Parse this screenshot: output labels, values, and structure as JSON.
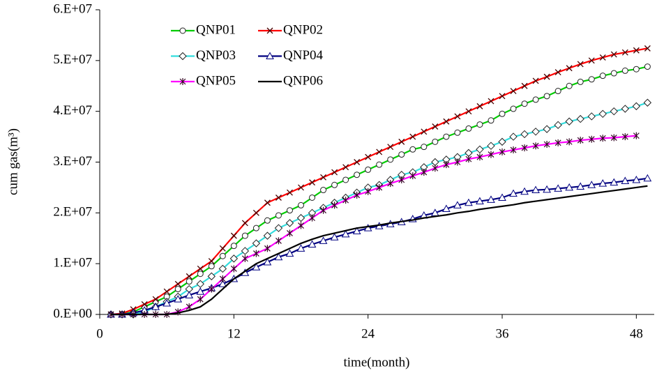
{
  "chart_data": {
    "type": "line",
    "xlabel": "time(month)",
    "ylabel": "cum gas(m³)",
    "xlim": [
      0,
      49.6
    ],
    "xticks": [
      0,
      12,
      24,
      36,
      48
    ],
    "ylim": [
      0,
      60000000
    ],
    "yticks": [
      {
        "value": 0,
        "label": "0.E+00"
      },
      {
        "value": 10000000,
        "label": "1.E+07"
      },
      {
        "value": 20000000,
        "label": "2.E+07"
      },
      {
        "value": 30000000,
        "label": "3.E+07"
      },
      {
        "value": 40000000,
        "label": "4.E+07"
      },
      {
        "value": 50000000,
        "label": "5.E+07"
      },
      {
        "value": 60000000,
        "label": "6.E+07"
      }
    ],
    "grid": false,
    "legend": "upper left",
    "x": [
      1,
      2,
      3,
      4,
      5,
      6,
      7,
      8,
      9,
      10,
      11,
      12,
      13,
      14,
      15,
      16,
      17,
      18,
      19,
      20,
      21,
      22,
      23,
      24,
      25,
      26,
      27,
      28,
      29,
      30,
      31,
      32,
      33,
      34,
      35,
      36,
      37,
      38,
      39,
      40,
      41,
      42,
      43,
      44,
      45,
      46,
      47,
      48,
      49
    ],
    "series": [
      {
        "name": "QNP01",
        "color": "#00cc00",
        "marker": "circle",
        "values": [
          0,
          0,
          500000.0,
          1500000.0,
          2500000.0,
          3500000.0,
          5000000.0,
          6500000.0,
          8000000.0,
          9500000.0,
          11500000.0,
          13500000.0,
          15500000.0,
          17000000.0,
          18500000.0,
          19500000.0,
          20500000.0,
          21500000.0,
          23000000.0,
          24500000.0,
          25500000.0,
          26500000.0,
          27500000.0,
          28500000.0,
          29500000.0,
          30500000.0,
          31500000.0,
          32500000.0,
          33000000.0,
          34000000.0,
          35000000.0,
          35800000.0,
          36600000.0,
          37400000.0,
          38200000.0,
          39500000.0,
          40500000.0,
          41500000.0,
          42300000.0,
          43000000.0,
          44000000.0,
          45000000.0,
          45800000.0,
          46300000.0,
          47000000.0,
          47500000.0,
          48000000.0,
          48300000.0,
          48800000.0
        ]
      },
      {
        "name": "QNP02",
        "color": "#ff0000",
        "marker": "x",
        "values": [
          0,
          200000.0,
          1000000.0,
          2000000.0,
          3000000.0,
          4500000.0,
          6000000.0,
          7500000.0,
          9000000.0,
          10500000.0,
          13000000.0,
          15500000.0,
          18000000.0,
          20000000.0,
          22000000.0,
          23000000.0,
          24000000.0,
          25000000.0,
          26000000.0,
          27000000.0,
          28000000.0,
          29000000.0,
          30000000.0,
          31000000.0,
          32000000.0,
          33000000.0,
          34000000.0,
          35000000.0,
          36000000.0,
          37000000.0,
          38000000.0,
          39000000.0,
          40000000.0,
          41000000.0,
          42000000.0,
          43000000.0,
          44000000.0,
          45000000.0,
          46000000.0,
          46800000.0,
          47700000.0,
          48500000.0,
          49300000.0,
          50000000.0,
          50600000.0,
          51200000.0,
          51600000.0,
          52000000.0,
          52400000.0
        ]
      },
      {
        "name": "QNP03",
        "color": "#33dddd",
        "marker": "diamond",
        "values": [
          0,
          0,
          0,
          500000.0,
          1500000.0,
          2500000.0,
          3500000.0,
          5000000.0,
          6000000.0,
          7500000.0,
          9000000.0,
          11000000.0,
          12500000.0,
          14000000.0,
          15500000.0,
          17000000.0,
          18000000.0,
          19000000.0,
          20000000.0,
          21000000.0,
          22000000.0,
          23000000.0,
          24000000.0,
          25000000.0,
          25500000.0,
          26500000.0,
          27500000.0,
          28000000.0,
          29000000.0,
          30000000.0,
          30500000.0,
          31000000.0,
          31800000.0,
          32500000.0,
          33200000.0,
          34000000.0,
          35000000.0,
          35500000.0,
          36000000.0,
          36500000.0,
          37300000.0,
          38000000.0,
          38500000.0,
          39000000.0,
          39500000.0,
          40000000.0,
          40500000.0,
          41000000.0,
          41700000.0
        ]
      },
      {
        "name": "QNP04",
        "color": "#000080",
        "marker": "triangle",
        "values": [
          0,
          0,
          300000.0,
          800000.0,
          1500000.0,
          2200000.0,
          3000000.0,
          3800000.0,
          4500000.0,
          5200000.0,
          6000000.0,
          7000000.0,
          8200000.0,
          9300000.0,
          10300000.0,
          11300000.0,
          12000000.0,
          13000000.0,
          13800000.0,
          14500000.0,
          15200000.0,
          15800000.0,
          16400000.0,
          17000000.0,
          17400000.0,
          17800000.0,
          18200000.0,
          18800000.0,
          19500000.0,
          20000000.0,
          20800000.0,
          21500000.0,
          22000000.0,
          22300000.0,
          22600000.0,
          23000000.0,
          23800000.0,
          24200000.0,
          24500000.0,
          24600000.0,
          24800000.0,
          25000000.0,
          25200000.0,
          25500000.0,
          25800000.0,
          26000000.0,
          26300000.0,
          26500000.0,
          26800000.0
        ]
      },
      {
        "name": "QNP05",
        "color": "#ff00ff",
        "marker": "star",
        "values": [
          0,
          0,
          0,
          0,
          0,
          0,
          500000.0,
          1500000.0,
          3000000.0,
          5000000.0,
          7000000.0,
          9000000.0,
          11000000.0,
          12000000.0,
          13000000.0,
          14500000.0,
          16000000.0,
          17500000.0,
          19000000.0,
          20500000.0,
          21500000.0,
          22500000.0,
          23500000.0,
          24200000.0,
          25000000.0,
          25800000.0,
          26500000.0,
          27300000.0,
          28000000.0,
          28800000.0,
          29500000.0,
          30000000.0,
          30600000.0,
          31000000.0,
          31500000.0,
          32000000.0,
          32400000.0,
          32800000.0,
          33200000.0,
          33500000.0,
          33800000.0,
          34000000.0,
          34300000.0,
          34500000.0,
          34700000.0,
          34800000.0,
          35000000.0,
          35200000.0,
          null
        ]
      },
      {
        "name": "QNP06",
        "color": "#000000",
        "marker": "none",
        "values": [
          0,
          0,
          0,
          0,
          0,
          0,
          300000.0,
          800000.0,
          1500000.0,
          3000000.0,
          5000000.0,
          7000000.0,
          8500000.0,
          10000000.0,
          11000000.0,
          12000000.0,
          13000000.0,
          14000000.0,
          14800000.0,
          15500000.0,
          16000000.0,
          16500000.0,
          17000000.0,
          17300000.0,
          17600000.0,
          18000000.0,
          18300000.0,
          18600000.0,
          19000000.0,
          19300000.0,
          19600000.0,
          20000000.0,
          20300000.0,
          20700000.0,
          21000000.0,
          21300000.0,
          21600000.0,
          22000000.0,
          22300000.0,
          22600000.0,
          22900000.0,
          23200000.0,
          23500000.0,
          23800000.0,
          24100000.0,
          24400000.0,
          24700000.0,
          25000000.0,
          25300000.0
        ]
      }
    ]
  }
}
